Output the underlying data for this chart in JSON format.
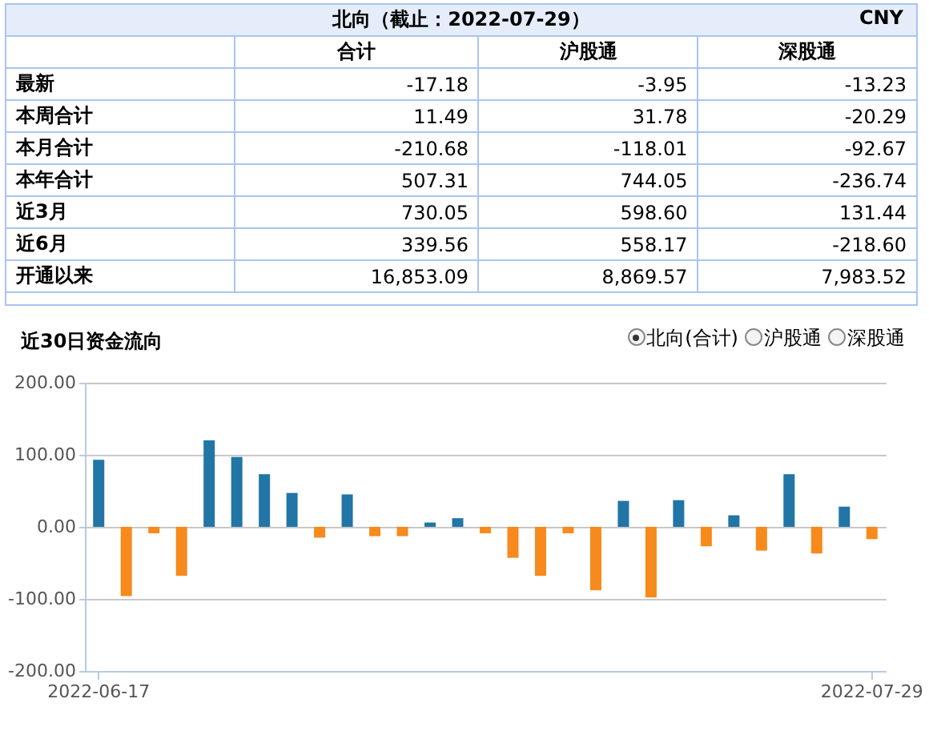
{
  "chart_data": [
    {
      "type": "other",
      "title": "北向（截止：2022-07-29）",
      "annotations": [
        "CNY"
      ],
      "categories": [
        "合计",
        "沪股通",
        "深股通"
      ],
      "y_categories": [
        "最新",
        "本周合计",
        "本月合计",
        "本年合计",
        "近3月",
        "近6月",
        "开通以来"
      ],
      "cell_labels": [
        [
          "-17.18",
          "-3.95",
          "-13.23"
        ],
        [
          "11.49",
          "31.78",
          "-20.29"
        ],
        [
          "-210.68",
          "-118.01",
          "-92.67"
        ],
        [
          "507.31",
          "744.05",
          "-236.74"
        ],
        [
          "730.05",
          "598.60",
          "131.44"
        ],
        [
          "339.56",
          "558.17",
          "-218.60"
        ],
        [
          "16,853.09",
          "8,869.57",
          "7,983.52"
        ]
      ]
    },
    {
      "type": "bar",
      "title": "近30日资金流向",
      "annotations": [
        "北向(合计)",
        "沪股通",
        "深股通"
      ],
      "categories": [
        "2022-06-17",
        null,
        null,
        null,
        null,
        null,
        null,
        null,
        null,
        null,
        null,
        null,
        null,
        null,
        null,
        null,
        null,
        null,
        null,
        null,
        null,
        null,
        null,
        null,
        null,
        null,
        null,
        null,
        "2022-07-29"
      ],
      "values": [
        93,
        -96,
        -9,
        -68,
        120,
        97,
        73,
        47,
        -15,
        45,
        -13,
        -13,
        6,
        12,
        -9,
        -43,
        -68,
        -9,
        -88,
        36,
        -98,
        37,
        -27,
        16,
        -33,
        73,
        -37,
        28,
        -17
      ],
      "colors": [
        "#2176a5",
        "#f78a1c",
        "#f78a1c",
        "#f78a1c",
        "#2176a5",
        "#2176a5",
        "#2176a5",
        "#2176a5",
        "#f78a1c",
        "#2176a5",
        "#f78a1c",
        "#f78a1c",
        "#2176a5",
        "#2176a5",
        "#f78a1c",
        "#f78a1c",
        "#f78a1c",
        "#f78a1c",
        "#f78a1c",
        "#2176a5",
        "#f78a1c",
        "#2176a5",
        "#f78a1c",
        "#2176a5",
        "#f78a1c",
        "#2176a5",
        "#f78a1c",
        "#2176a5",
        "#f78a1c"
      ],
      "ylim": [
        -200,
        200
      ],
      "yticks": [
        {
          "value": -200,
          "label": "-200.00"
        },
        {
          "value": -100,
          "label": "-100.00"
        },
        {
          "value": 0,
          "label": "0.00"
        },
        {
          "value": 100,
          "label": "100.00"
        },
        {
          "value": 200,
          "label": "200.00"
        }
      ],
      "grid": "y"
    }
  ]
}
